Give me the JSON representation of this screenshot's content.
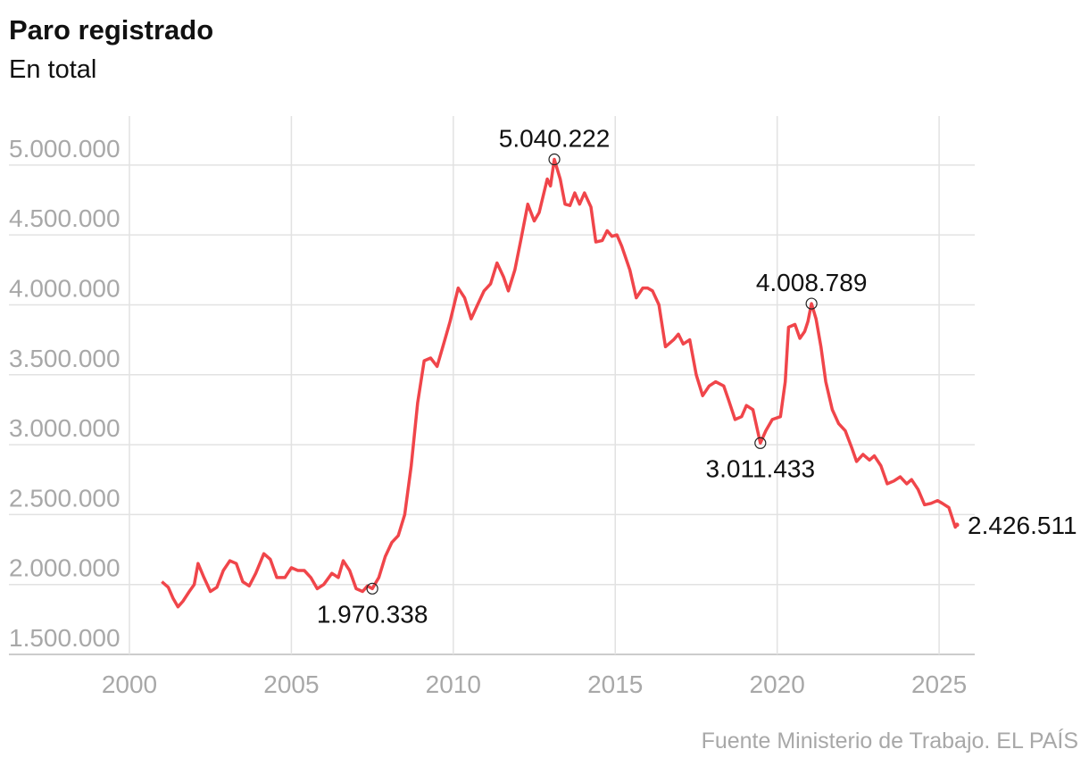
{
  "chart_data": {
    "type": "line",
    "title": "Paro registrado",
    "subtitle": "En total",
    "source": "Fuente Ministerio de Trabajo. EL PAÍS",
    "x": [
      2001.0,
      2001.2,
      2001.35,
      2001.5,
      2001.65,
      2001.85,
      2002.0,
      2002.12,
      2002.3,
      2002.5,
      2002.7,
      2002.9,
      2003.1,
      2003.3,
      2003.5,
      2003.7,
      2003.9,
      2004.15,
      2004.35,
      2004.55,
      2004.8,
      2005.0,
      2005.2,
      2005.4,
      2005.6,
      2005.8,
      2006.0,
      2006.25,
      2006.45,
      2006.6,
      2006.8,
      2007.0,
      2007.2,
      2007.35,
      2007.5,
      2007.7,
      2007.9,
      2008.1,
      2008.3,
      2008.5,
      2008.7,
      2008.9,
      2009.1,
      2009.3,
      2009.5,
      2009.7,
      2009.9,
      2010.15,
      2010.35,
      2010.55,
      2010.75,
      2010.95,
      2011.15,
      2011.35,
      2011.55,
      2011.7,
      2011.9,
      2012.1,
      2012.3,
      2012.5,
      2012.65,
      2012.9,
      2013.0,
      2013.12,
      2013.3,
      2013.45,
      2013.6,
      2013.75,
      2013.9,
      2014.05,
      2014.25,
      2014.4,
      2014.6,
      2014.75,
      2014.9,
      2015.05,
      2015.2,
      2015.45,
      2015.65,
      2015.85,
      2016.0,
      2016.15,
      2016.35,
      2016.55,
      2016.8,
      2016.95,
      2017.1,
      2017.3,
      2017.5,
      2017.7,
      2017.9,
      2018.1,
      2018.35,
      2018.5,
      2018.7,
      2018.9,
      2019.05,
      2019.25,
      2019.48,
      2019.65,
      2019.85,
      2020.1,
      2020.25,
      2020.35,
      2020.55,
      2020.7,
      2020.85,
      2020.95,
      2021.06,
      2021.2,
      2021.35,
      2021.5,
      2021.7,
      2021.9,
      2022.1,
      2022.3,
      2022.45,
      2022.65,
      2022.85,
      2023.0,
      2023.2,
      2023.4,
      2023.6,
      2023.8,
      2024.0,
      2024.15,
      2024.35,
      2024.55,
      2024.75,
      2024.95,
      2025.1,
      2025.3,
      2025.4,
      2025.5,
      2025.55
    ],
    "series": [
      {
        "name": "Paro registrado",
        "color": "#f0454a",
        "values": [
          2020000,
          1980000,
          1900000,
          1840000,
          1880000,
          1950000,
          2000000,
          2150000,
          2050000,
          1950000,
          1980000,
          2100000,
          2170000,
          2150000,
          2020000,
          1990000,
          2080000,
          2220000,
          2180000,
          2050000,
          2050000,
          2120000,
          2100000,
          2100000,
          2050000,
          1970000,
          2000000,
          2080000,
          2050000,
          2170000,
          2100000,
          1970000,
          1950000,
          1990000,
          1970338,
          2050000,
          2200000,
          2300000,
          2350000,
          2500000,
          2850000,
          3300000,
          3600000,
          3620000,
          3560000,
          3720000,
          3880000,
          4120000,
          4050000,
          3900000,
          4000000,
          4100000,
          4150000,
          4300000,
          4200000,
          4100000,
          4250000,
          4480000,
          4720000,
          4600000,
          4660000,
          4900000,
          4850000,
          5040222,
          4900000,
          4720000,
          4710000,
          4800000,
          4720000,
          4800000,
          4700000,
          4450000,
          4460000,
          4530000,
          4490000,
          4500000,
          4420000,
          4250000,
          4050000,
          4120000,
          4120000,
          4100000,
          4000000,
          3700000,
          3750000,
          3790000,
          3720000,
          3750000,
          3500000,
          3350000,
          3420000,
          3450000,
          3420000,
          3320000,
          3180000,
          3200000,
          3280000,
          3250000,
          3011433,
          3100000,
          3180000,
          3200000,
          3450000,
          3840000,
          3860000,
          3760000,
          3810000,
          3880000,
          4008789,
          3900000,
          3700000,
          3450000,
          3250000,
          3150000,
          3100000,
          2980000,
          2880000,
          2930000,
          2890000,
          2920000,
          2850000,
          2720000,
          2740000,
          2770000,
          2720000,
          2750000,
          2680000,
          2570000,
          2580000,
          2600000,
          2580000,
          2550000,
          2480000,
          2410000,
          2426511
        ]
      }
    ],
    "annotations": [
      {
        "x": 2007.5,
        "value": 1970338,
        "label": "1.970.338"
      },
      {
        "x": 2013.12,
        "value": 5040222,
        "label": "5.040.222"
      },
      {
        "x": 2019.48,
        "value": 3011433,
        "label": "3.011.433"
      },
      {
        "x": 2021.06,
        "value": 4008789,
        "label": "4.008.789"
      },
      {
        "x": 2025.55,
        "value": 2426511,
        "label": "2.426.511"
      }
    ],
    "xlim": [
      2000,
      2026.1
    ],
    "xticks": [
      2000,
      2005,
      2010,
      2015,
      2020,
      2025
    ],
    "ylim": [
      1500000,
      5350000
    ],
    "yticks": [
      {
        "value": 1500000,
        "label": "1.500.000"
      },
      {
        "value": 2000000,
        "label": "2.000.000"
      },
      {
        "value": 2500000,
        "label": "2.500.000"
      },
      {
        "value": 3000000,
        "label": "3.000.000"
      },
      {
        "value": 3500000,
        "label": "3.500.000"
      },
      {
        "value": 4000000,
        "label": "4.000.000"
      },
      {
        "value": 4500000,
        "label": "4.500.000"
      },
      {
        "value": 5000000,
        "label": "5.000.000"
      }
    ],
    "grid": true
  }
}
